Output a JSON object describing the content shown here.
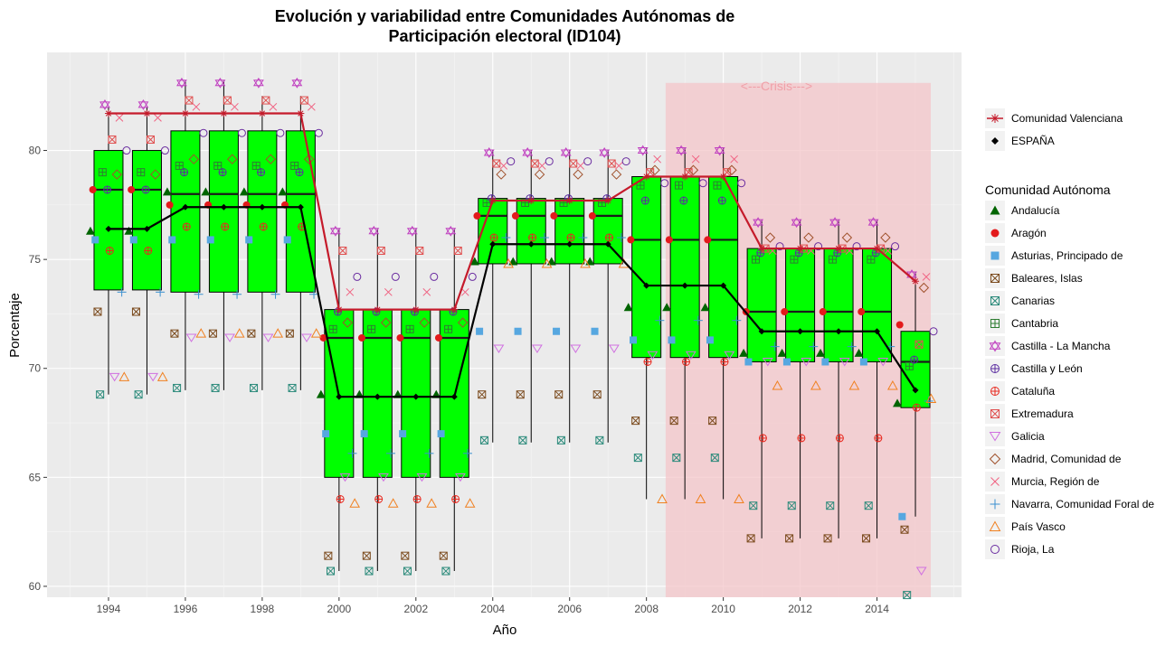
{
  "chart_data": {
    "type": "boxplot",
    "title": "Evolución y variabilidad entre Comunidades Autónomas de",
    "subtitle": "Participación electoral (ID104)",
    "xlabel": "Año",
    "ylabel": "Porcentaje",
    "xlim": [
      1992.4,
      2016.2
    ],
    "ylim": [
      59.5,
      84.5
    ],
    "x_ticks": [
      1994,
      1996,
      1998,
      2000,
      2002,
      2004,
      2006,
      2008,
      2010,
      2012,
      2014
    ],
    "y_ticks": [
      60,
      65,
      70,
      75,
      80
    ],
    "grid": true,
    "legend_position": "right",
    "crisis": {
      "label": "<---Crisis--->",
      "x_start": 2008.5,
      "x_end": 2015.4,
      "y_low": 59.5,
      "y_high": 83.1,
      "color": "#f4c6c9"
    },
    "boxes": [
      {
        "year": 1994,
        "q1": 73.6,
        "median": 78.2,
        "q3": 80.0,
        "low": 68.8,
        "high": 82.0
      },
      {
        "year": 1995,
        "q1": 73.6,
        "median": 78.2,
        "q3": 80.0,
        "low": 68.8,
        "high": 82.0
      },
      {
        "year": 1996,
        "q1": 73.5,
        "median": 78.0,
        "q3": 80.9,
        "low": 69.0,
        "high": 83.2
      },
      {
        "year": 1997,
        "q1": 73.5,
        "median": 78.0,
        "q3": 80.9,
        "low": 69.0,
        "high": 83.2
      },
      {
        "year": 1998,
        "q1": 73.5,
        "median": 78.0,
        "q3": 80.9,
        "low": 69.0,
        "high": 82.5
      },
      {
        "year": 1999,
        "q1": 73.5,
        "median": 78.0,
        "q3": 80.9,
        "low": 69.0,
        "high": 82.5
      },
      {
        "year": 2000,
        "q1": 65.0,
        "median": 71.4,
        "q3": 72.7,
        "low": 60.7,
        "high": 76.4
      },
      {
        "year": 2001,
        "q1": 65.0,
        "median": 71.4,
        "q3": 72.7,
        "low": 60.7,
        "high": 76.4
      },
      {
        "year": 2002,
        "q1": 65.0,
        "median": 71.4,
        "q3": 72.7,
        "low": 60.7,
        "high": 76.4
      },
      {
        "year": 2003,
        "q1": 65.0,
        "median": 71.4,
        "q3": 72.7,
        "low": 60.7,
        "high": 76.4
      },
      {
        "year": 2004,
        "q1": 74.8,
        "median": 77.0,
        "q3": 77.8,
        "low": 66.6,
        "high": 80.0
      },
      {
        "year": 2005,
        "q1": 74.8,
        "median": 77.0,
        "q3": 77.8,
        "low": 66.6,
        "high": 80.0
      },
      {
        "year": 2006,
        "q1": 74.8,
        "median": 77.0,
        "q3": 77.8,
        "low": 66.6,
        "high": 80.0
      },
      {
        "year": 2007,
        "q1": 74.8,
        "median": 77.0,
        "q3": 77.8,
        "low": 66.6,
        "high": 80.0
      },
      {
        "year": 2008,
        "q1": 70.5,
        "median": 75.9,
        "q3": 78.8,
        "low": 64.0,
        "high": 80.1
      },
      {
        "year": 2009,
        "q1": 70.5,
        "median": 75.9,
        "q3": 78.8,
        "low": 64.0,
        "high": 80.1
      },
      {
        "year": 2010,
        "q1": 70.5,
        "median": 75.9,
        "q3": 78.8,
        "low": 64.0,
        "high": 80.1
      },
      {
        "year": 2011,
        "q1": 70.3,
        "median": 72.6,
        "q3": 75.5,
        "low": 62.2,
        "high": 76.8
      },
      {
        "year": 2012,
        "q1": 70.3,
        "median": 72.6,
        "q3": 75.5,
        "low": 62.2,
        "high": 76.8
      },
      {
        "year": 2013,
        "q1": 70.3,
        "median": 72.6,
        "q3": 75.5,
        "low": 62.2,
        "high": 76.8
      },
      {
        "year": 2014,
        "q1": 70.3,
        "median": 72.6,
        "q3": 75.5,
        "low": 62.2,
        "high": 76.8
      },
      {
        "year": 2015,
        "q1": 68.2,
        "median": 70.3,
        "q3": 71.7,
        "low": 63.2,
        "high": 74.4
      }
    ],
    "lines": [
      {
        "name": "Comunidad Valenciana",
        "color": "#c51b2b",
        "x": [
          1994,
          1995,
          1996,
          1997,
          1998,
          1999,
          2000,
          2001,
          2002,
          2003,
          2004,
          2005,
          2006,
          2007,
          2008,
          2009,
          2010,
          2011,
          2012,
          2013,
          2014,
          2015
        ],
        "y": [
          81.7,
          81.7,
          81.7,
          81.7,
          81.7,
          81.7,
          72.7,
          72.7,
          72.7,
          72.7,
          77.7,
          77.7,
          77.7,
          77.7,
          78.8,
          78.8,
          78.8,
          75.5,
          75.5,
          75.5,
          75.5,
          74.0
        ]
      },
      {
        "name": "ESPAÑA",
        "color": "#000000",
        "x": [
          1994,
          1995,
          1996,
          1997,
          1998,
          1999,
          2000,
          2001,
          2002,
          2003,
          2004,
          2005,
          2006,
          2007,
          2008,
          2009,
          2010,
          2011,
          2012,
          2013,
          2014,
          2015
        ],
        "y": [
          76.4,
          76.4,
          77.4,
          77.4,
          77.4,
          77.4,
          68.7,
          68.7,
          68.7,
          68.7,
          75.7,
          75.7,
          75.7,
          75.7,
          73.8,
          73.8,
          73.8,
          71.7,
          71.7,
          71.7,
          71.7,
          69.0
        ]
      }
    ],
    "legend_title": "Comunidad Autónoma",
    "series": [
      {
        "name": "Andalucía",
        "color": "#006400",
        "shape": "triangle-filled",
        "values": [
          76.3,
          76.3,
          78.1,
          78.1,
          78.1,
          78.1,
          68.8,
          68.8,
          68.8,
          68.8,
          74.9,
          74.9,
          74.9,
          74.9,
          72.8,
          72.8,
          72.8,
          70.7,
          70.7,
          70.7,
          70.7,
          68.4
        ]
      },
      {
        "name": "Aragón",
        "color": "#e31a1c",
        "shape": "circle-filled",
        "values": [
          78.2,
          78.2,
          77.5,
          77.5,
          77.5,
          77.5,
          71.4,
          71.4,
          71.4,
          71.4,
          77.0,
          77.0,
          77.0,
          77.0,
          75.9,
          75.9,
          75.9,
          72.6,
          72.6,
          72.6,
          72.6,
          72.0
        ]
      },
      {
        "name": "Asturias, Principado de",
        "color": "#56a7e0",
        "shape": "square-filled",
        "values": [
          75.9,
          75.9,
          75.9,
          75.9,
          75.9,
          75.9,
          67.0,
          67.0,
          67.0,
          67.0,
          71.7,
          71.7,
          71.7,
          71.7,
          71.3,
          71.3,
          71.3,
          70.3,
          70.3,
          70.3,
          70.3,
          63.2
        ]
      },
      {
        "name": "Baleares, Islas",
        "color": "#7b4b1e",
        "shape": "square-cross",
        "values": [
          72.6,
          72.6,
          71.6,
          71.6,
          71.6,
          71.6,
          61.4,
          61.4,
          61.4,
          61.4,
          68.8,
          68.8,
          68.8,
          68.8,
          67.6,
          67.6,
          67.6,
          62.2,
          62.2,
          62.2,
          62.2,
          62.6
        ]
      },
      {
        "name": "Canarias",
        "color": "#2a8a7a",
        "shape": "square-x",
        "values": [
          68.8,
          68.8,
          69.1,
          69.1,
          69.1,
          69.1,
          60.7,
          60.7,
          60.7,
          60.7,
          66.7,
          66.7,
          66.7,
          66.7,
          65.9,
          65.9,
          65.9,
          63.7,
          63.7,
          63.7,
          63.7,
          59.6
        ]
      },
      {
        "name": "Cantabria",
        "color": "#2e7d32",
        "shape": "square-plus",
        "values": [
          79.0,
          79.0,
          79.3,
          79.3,
          79.3,
          79.3,
          71.8,
          71.8,
          71.8,
          71.8,
          77.6,
          77.6,
          77.6,
          77.6,
          78.4,
          78.4,
          78.4,
          75.0,
          75.0,
          75.0,
          75.0,
          70.1
        ]
      },
      {
        "name": "Castilla - La Mancha",
        "color": "#c040c0",
        "shape": "star-david",
        "values": [
          82.1,
          82.1,
          83.1,
          83.1,
          83.1,
          83.1,
          76.3,
          76.3,
          76.3,
          76.3,
          79.9,
          79.9,
          79.9,
          79.9,
          80.0,
          80.0,
          80.0,
          76.7,
          76.7,
          76.7,
          76.7,
          74.3
        ]
      },
      {
        "name": "Castilla y León",
        "color": "#5a2ca0",
        "shape": "circle-plus",
        "values": [
          78.2,
          78.2,
          79.0,
          79.0,
          79.0,
          79.0,
          72.6,
          72.6,
          72.6,
          72.6,
          77.8,
          77.8,
          77.8,
          77.8,
          77.7,
          77.7,
          77.7,
          75.3,
          75.3,
          75.3,
          75.3,
          70.4
        ]
      },
      {
        "name": "Cataluña",
        "color": "#e8281e",
        "shape": "circle-plus",
        "values": [
          75.4,
          75.4,
          76.5,
          76.5,
          76.5,
          76.5,
          64.0,
          64.0,
          64.0,
          64.0,
          76.0,
          76.0,
          76.0,
          76.0,
          70.3,
          70.3,
          70.3,
          66.8,
          66.8,
          66.8,
          66.8,
          68.2
        ]
      },
      {
        "name": "Extremadura",
        "color": "#e05050",
        "shape": "square-x",
        "values": [
          80.5,
          80.5,
          82.3,
          82.3,
          82.3,
          82.3,
          75.4,
          75.4,
          75.4,
          75.4,
          79.4,
          79.4,
          79.4,
          79.4,
          79.0,
          79.0,
          79.0,
          75.5,
          75.5,
          75.5,
          75.5,
          71.1
        ]
      },
      {
        "name": "Galicia",
        "color": "#d070e0",
        "shape": "triangle-down",
        "values": [
          69.6,
          69.6,
          71.4,
          71.4,
          71.4,
          71.4,
          65.0,
          65.0,
          65.0,
          65.0,
          70.9,
          70.9,
          70.9,
          70.9,
          70.6,
          70.6,
          70.6,
          70.3,
          70.3,
          70.3,
          70.3,
          60.7
        ]
      },
      {
        "name": "Madrid, Comunidad de",
        "color": "#a0522d",
        "shape": "diamond",
        "values": [
          78.9,
          78.9,
          79.6,
          79.6,
          79.6,
          79.6,
          72.1,
          72.1,
          72.1,
          72.1,
          78.9,
          78.9,
          78.9,
          78.9,
          79.1,
          79.1,
          79.1,
          76.0,
          76.0,
          76.0,
          76.0,
          73.7
        ]
      },
      {
        "name": "Murcia, Región de",
        "color": "#f06080",
        "shape": "x",
        "values": [
          81.5,
          81.5,
          82.0,
          82.0,
          82.0,
          82.0,
          73.5,
          73.5,
          73.5,
          73.5,
          79.3,
          79.3,
          79.3,
          79.3,
          79.6,
          79.6,
          79.6,
          75.4,
          75.4,
          75.4,
          75.4,
          74.2
        ]
      },
      {
        "name": "Navarra, Comunidad Foral de",
        "color": "#3a90d0",
        "shape": "plus",
        "values": [
          73.5,
          73.5,
          73.4,
          73.4,
          73.4,
          73.4,
          66.1,
          66.1,
          66.1,
          66.1,
          76.0,
          76.0,
          76.0,
          76.0,
          72.2,
          72.2,
          72.2,
          71.0,
          71.0,
          71.0,
          71.0,
          68.5
        ]
      },
      {
        "name": "País Vasco",
        "color": "#f08020",
        "shape": "triangle-open",
        "values": [
          69.6,
          69.6,
          71.6,
          71.6,
          71.6,
          71.6,
          63.8,
          63.8,
          63.8,
          63.8,
          74.8,
          74.8,
          74.8,
          74.8,
          64.0,
          64.0,
          64.0,
          69.2,
          69.2,
          69.2,
          69.2,
          68.6
        ]
      },
      {
        "name": "Rioja, La",
        "color": "#6a2ca0",
        "shape": "circle-open",
        "values": [
          80.0,
          80.0,
          80.8,
          80.8,
          80.8,
          80.8,
          74.2,
          74.2,
          74.2,
          74.2,
          79.5,
          79.5,
          79.5,
          79.5,
          78.5,
          78.5,
          78.5,
          75.6,
          75.6,
          75.6,
          75.6,
          71.7
        ]
      }
    ]
  }
}
